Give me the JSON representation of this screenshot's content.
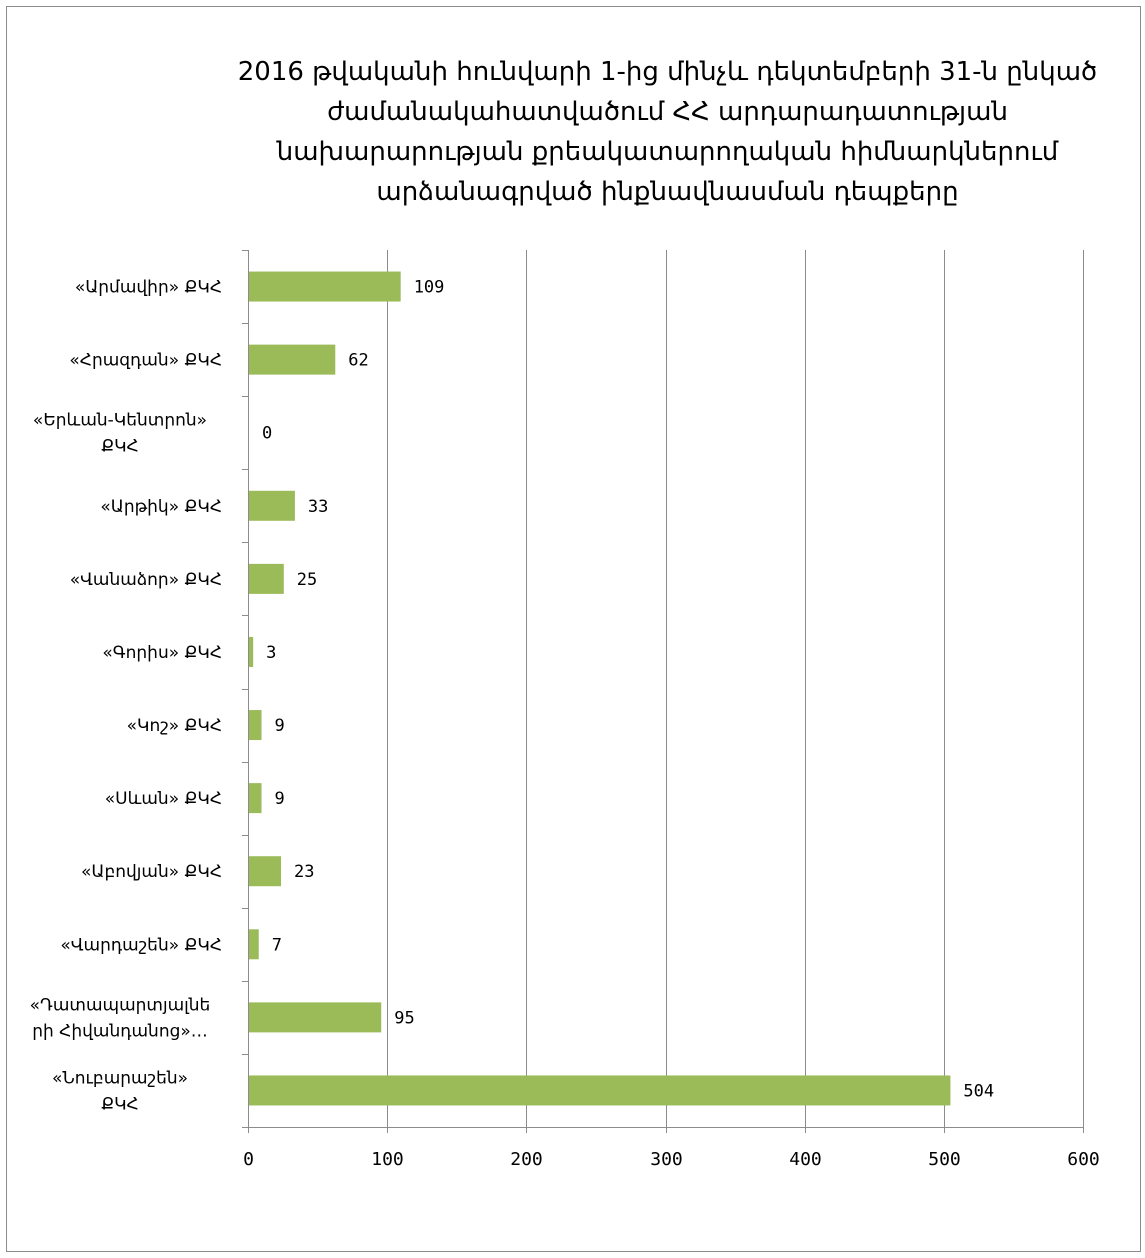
{
  "chart_data": {
    "type": "bar",
    "orientation": "horizontal",
    "title": "2016 թվականի հունվարի 1-ից մինչև դեկտեմբերի 31-ն ընկած ժամանակահատվածում ՀՀ արդարադատության նախարարության քրեակատարողական հիմնարկներում արձանագրված ինքնավնասման դեպքերը",
    "title_lines": [
      "2016 թվականի հունվարի 1-ից մինչև դեկտեմբերի 31-ն ընկած",
      "ժամանակահատվածում ՀՀ արդարադատության",
      "նախարարության քրեակատարողական հիմնարկներում",
      "արձանագրված ինքնավնասման դեպքերը"
    ],
    "categories": [
      [
        "«Արմավիր» ՔԿՀ"
      ],
      [
        "«Հրազդան» ՔԿՀ"
      ],
      [
        "«Երևան-Կենտրոն»",
        "ՔԿՀ"
      ],
      [
        "«Արթիկ» ՔԿՀ"
      ],
      [
        "«Վանաձոր» ՔԿՀ"
      ],
      [
        "«Գորիս» ՔԿՀ"
      ],
      [
        "«Կոշ» ՔԿՀ"
      ],
      [
        "«Սևան» ՔԿՀ"
      ],
      [
        "«Աբովյան» ՔԿՀ"
      ],
      [
        "«Վարդաշեն» ՔԿՀ"
      ],
      [
        "«Դատապարտյալնե",
        "րի Հիվանդանոց»…"
      ],
      [
        "«Նուբարաշեն»",
        "ՔԿՀ"
      ]
    ],
    "values": [
      109,
      62,
      0,
      33,
      25,
      3,
      9,
      9,
      23,
      7,
      95,
      504
    ],
    "xlim": [
      0,
      600
    ],
    "xticks": [
      "0",
      "100",
      "200",
      "300",
      "400",
      "500",
      "600"
    ],
    "grid": true,
    "bar_color": "#9bbb59",
    "legend": "none"
  }
}
